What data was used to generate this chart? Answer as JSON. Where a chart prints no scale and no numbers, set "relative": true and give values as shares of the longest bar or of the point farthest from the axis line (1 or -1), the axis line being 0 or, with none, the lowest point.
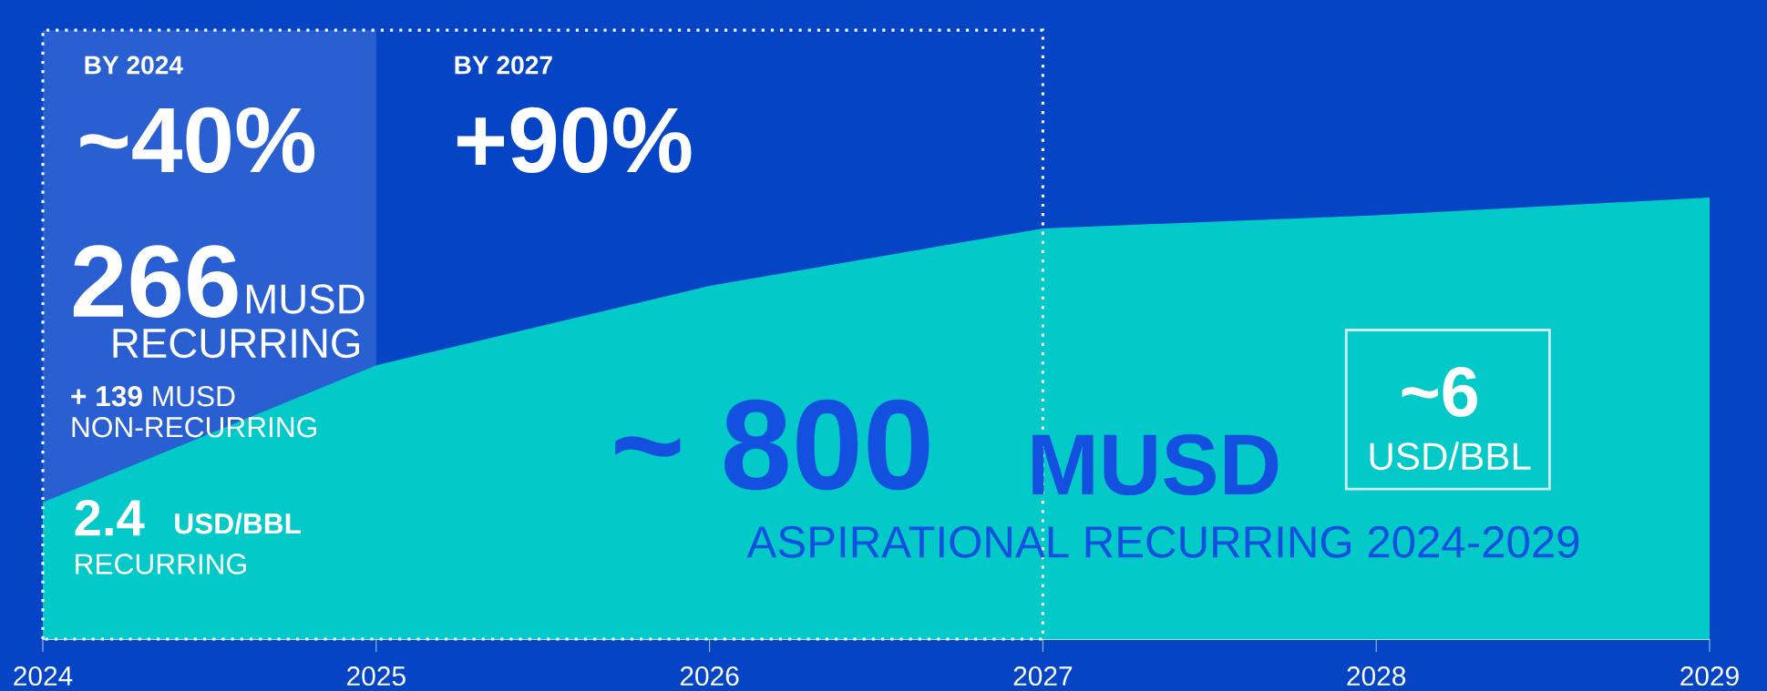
{
  "chart_data": {
    "type": "area",
    "relative": true,
    "x": [
      2024,
      2025,
      2026,
      2027,
      2028,
      2029
    ],
    "series": [
      {
        "color": "#03c9c9",
        "values": [
          0.31,
          0.62,
          0.8,
          0.93,
          0.96,
          1
        ]
      }
    ],
    "xlim": [
      2024,
      2029
    ],
    "xticks": [
      2024,
      2025,
      2026,
      2027,
      2028,
      2029
    ],
    "bands": [
      {
        "axis": "x",
        "from": 2024,
        "to": 2025,
        "color": "#2a5fd2"
      }
    ],
    "annotations": [
      "BY 2024",
      "~40%",
      "BY 2027",
      "+90%",
      "266",
      "MUSD",
      "RECURRING",
      "**+ 139** MUSD",
      "NON-RECURRING",
      "2.4",
      "USD/BBL",
      "RECURRING",
      "~ 800",
      "MUSD",
      "ASPIRATIONAL RECURRING 2024-2029",
      "~6",
      "USD/BBL"
    ]
  }
}
